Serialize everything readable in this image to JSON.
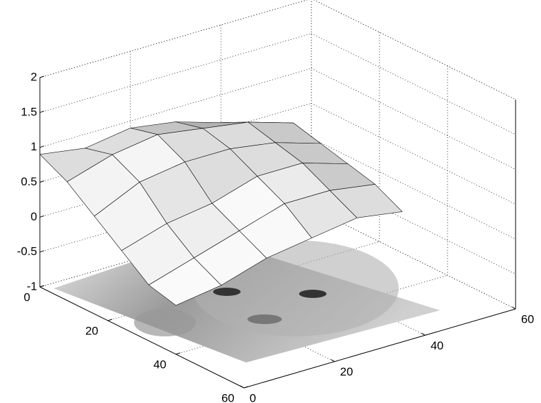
{
  "chart_data": {
    "type": "surface",
    "x": [
      0,
      8,
      16,
      24,
      32,
      40
    ],
    "y": [
      0,
      10,
      20,
      30,
      40,
      50
    ],
    "z": [
      [
        0.9,
        0.8,
        0.9,
        0.8,
        0.6,
        0.4
      ],
      [
        0.7,
        0.9,
        1.0,
        0.9,
        0.8,
        0.6
      ],
      [
        0.4,
        0.7,
        0.8,
        0.8,
        0.7,
        0.5
      ],
      [
        0.1,
        0.3,
        0.4,
        0.6,
        0.6,
        0.4
      ],
      [
        -0.2,
        0.0,
        0.2,
        0.4,
        0.4,
        0.3
      ],
      [
        -0.3,
        -0.2,
        0.0,
        0.1,
        0.2,
        0.1
      ]
    ],
    "xlim": [
      0,
      60
    ],
    "ylim": [
      0,
      60
    ],
    "zlim": [
      -1,
      2
    ],
    "xticks": [
      0,
      20,
      40,
      60
    ],
    "yticks": [
      0,
      20,
      40,
      60
    ],
    "zticks": [
      -1,
      -0.5,
      0,
      0.5,
      1,
      1.5,
      2
    ],
    "grid": true,
    "color": "#c8c8c8"
  }
}
